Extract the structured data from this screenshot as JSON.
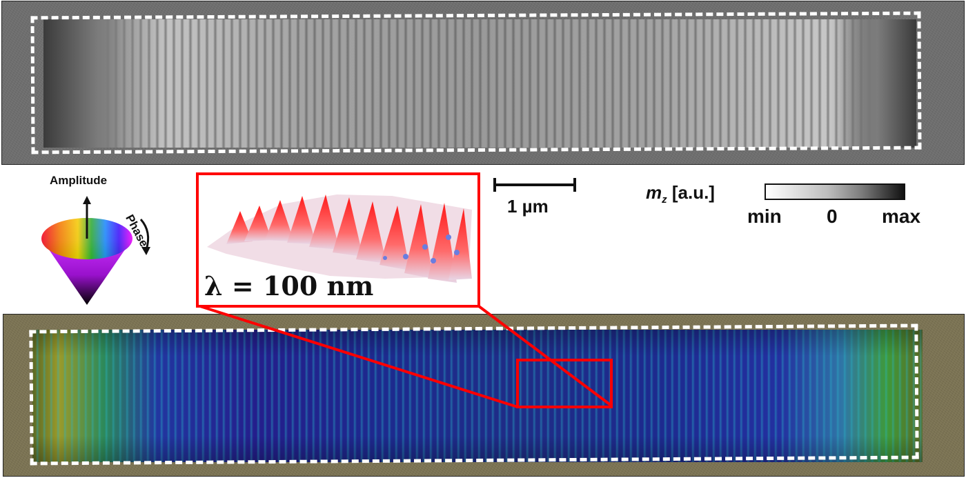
{
  "figure": {
    "top_panel": {
      "description_label": "mz-grayscale-image"
    },
    "bottom_panel": {
      "description_label": "color-phase-image"
    },
    "legend": {
      "amplitude_label": "Amplitude",
      "phase_label": "Phase"
    },
    "inset": {
      "wavelength_label": "λ = 100 nm"
    },
    "scale_bar": {
      "label": "1 µm"
    },
    "colorbar": {
      "symbol": "m",
      "symbol_sub": "z",
      "unit": "[a.u.]",
      "tick_min": "min",
      "tick_zero": "0",
      "tick_max": "max"
    },
    "colors": {
      "dash": "#ffffff",
      "highlight": "#ff0000"
    }
  }
}
